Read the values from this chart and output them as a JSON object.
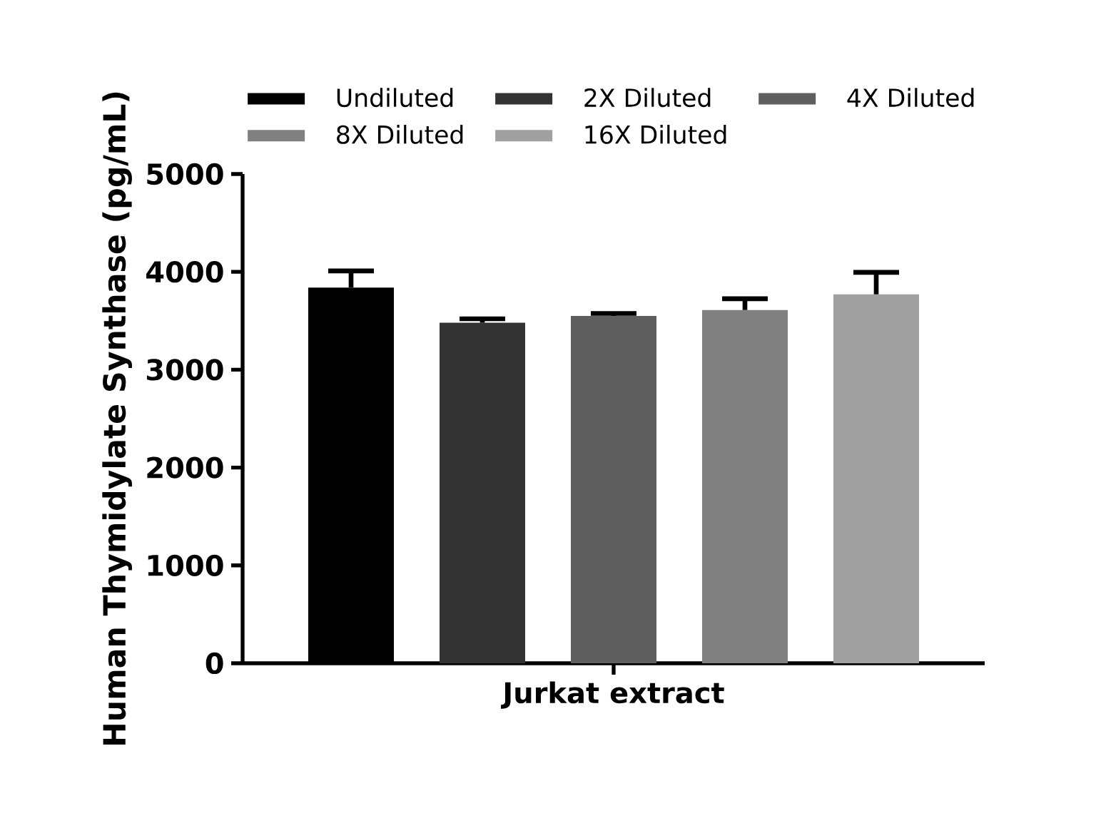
{
  "chart_data": {
    "type": "bar",
    "ylabel": "Human Thymidylate Synthase (pg/mL)",
    "categories": [
      "Jurkat extract"
    ],
    "series": [
      {
        "name": "Undiluted",
        "color": "#000000",
        "values": [
          3840
        ],
        "errors": [
          170
        ]
      },
      {
        "name": "2X Diluted",
        "color": "#333333",
        "values": [
          3480
        ],
        "errors": [
          40
        ]
      },
      {
        "name": "4X Diluted",
        "color": "#5f5f5f",
        "values": [
          3550
        ],
        "errors": [
          25
        ]
      },
      {
        "name": "8X Diluted",
        "color": "#808080",
        "values": [
          3610
        ],
        "errors": [
          115
        ]
      },
      {
        "name": "16X Diluted",
        "color": "#a0a0a0",
        "values": [
          3770
        ],
        "errors": [
          225
        ]
      }
    ],
    "ylim": [
      0,
      5000
    ],
    "yticks": [
      0,
      1000,
      2000,
      3000,
      4000,
      5000
    ],
    "legend": "top"
  }
}
